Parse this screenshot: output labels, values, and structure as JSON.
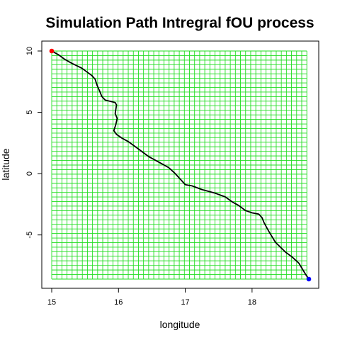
{
  "chart_data": {
    "type": "line",
    "title": "Simulation Path Intregral fOU process",
    "xlabel": "longitude",
    "ylabel": "latitude",
    "xlim": [
      15.0,
      18.85
    ],
    "ylim": [
      -8.6,
      10.0
    ],
    "xticks": [
      15,
      16,
      17,
      18
    ],
    "yticks": [
      10,
      5,
      0,
      -5
    ],
    "grid": {
      "color": "#22dd22",
      "x_from": 15.0,
      "x_to": 18.82,
      "y_from": -8.6,
      "y_to": 10.0,
      "x_lines": 51,
      "y_lines": 51
    },
    "path_color": "#000000",
    "start_point": {
      "x": 15.0,
      "y": 10.0,
      "color": "#ff0000"
    },
    "end_point": {
      "x": 18.85,
      "y": -8.6,
      "color": "#0000ff"
    },
    "series": [
      {
        "x": [
          15.0,
          15.1,
          15.2,
          15.3,
          15.45,
          15.6,
          15.65,
          15.68,
          15.72,
          15.75,
          15.8,
          15.95,
          15.97,
          15.95,
          15.98,
          15.96,
          15.93,
          15.97,
          16.05,
          16.15,
          16.25,
          16.45,
          16.65,
          16.75,
          16.85,
          16.95,
          17.0,
          17.1,
          17.25,
          17.45,
          17.6,
          17.7,
          17.8,
          17.9,
          18.0,
          18.1,
          18.15,
          18.18,
          18.25,
          18.35,
          18.5,
          18.6,
          18.7,
          18.8,
          18.85
        ],
        "y": [
          10.0,
          9.7,
          9.3,
          9.0,
          8.6,
          8.0,
          7.7,
          7.2,
          6.7,
          6.3,
          6.0,
          5.8,
          5.6,
          4.9,
          4.5,
          4.0,
          3.5,
          3.2,
          2.9,
          2.6,
          2.2,
          1.4,
          0.8,
          0.5,
          0.0,
          -0.6,
          -0.9,
          -1.0,
          -1.3,
          -1.6,
          -1.9,
          -2.3,
          -2.6,
          -3.0,
          -3.2,
          -3.3,
          -3.6,
          -4.0,
          -4.7,
          -5.6,
          -6.4,
          -6.8,
          -7.3,
          -8.2,
          -8.6
        ]
      }
    ]
  }
}
